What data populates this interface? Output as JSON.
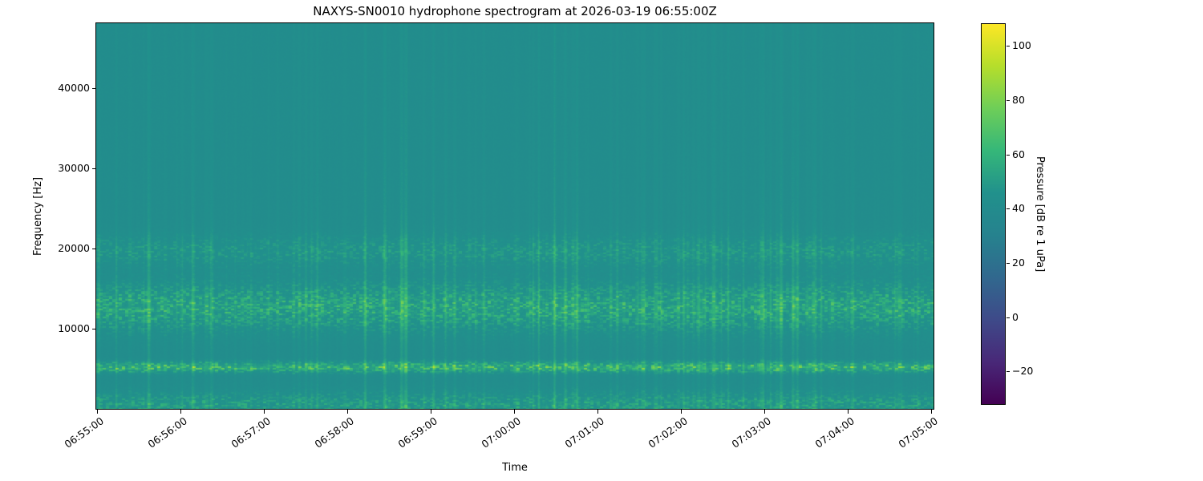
{
  "chart_data": {
    "type": "heatmap",
    "subtype": "spectrogram",
    "title": "NAXYS-SN0010 hydrophone spectrogram at 2026-03-19 06:55:00Z",
    "xlabel": "Time",
    "ylabel": "Frequency [Hz]",
    "x_ticks": [
      "06:55:00",
      "06:56:00",
      "06:57:00",
      "06:58:00",
      "06:59:00",
      "07:00:00",
      "07:01:00",
      "07:02:00",
      "07:03:00",
      "07:04:00",
      "07:05:00"
    ],
    "y_ticks": [
      10000,
      20000,
      30000,
      40000
    ],
    "y_range_hz": [
      0,
      48100
    ],
    "grid": false,
    "colorbar": {
      "label": "Pressure [dB re 1 uPa]",
      "ticks": [
        -20,
        0,
        20,
        40,
        60,
        80,
        100
      ],
      "vmin": -32,
      "vmax": 108,
      "colormap": "viridis",
      "colormap_stops": [
        "#440154",
        "#482878",
        "#3e4a89",
        "#31688e",
        "#26828e",
        "#21918c",
        "#35b779",
        "#6ece58",
        "#b5de2b",
        "#fde725"
      ],
      "position": "right"
    },
    "background_level_db": 41,
    "background_color_approx": "#1f9e89",
    "bands": [
      {
        "name": "low-frequency-surface-noise",
        "center_hz": 400,
        "half_width_hz": 1100,
        "peak_db": 56
      },
      {
        "name": "tonal-band-5khz",
        "center_hz": 5200,
        "half_width_hz": 420,
        "peak_db": 74
      },
      {
        "name": "broadband-band-12-14khz",
        "center_hz": 12700,
        "half_width_hz": 1900,
        "peak_db": 62
      },
      {
        "name": "band-19-20khz",
        "center_hz": 19700,
        "half_width_hz": 1300,
        "peak_db": 51
      }
    ],
    "transients": {
      "description": "broadband vertical streaks (impulsive clicks) across the whole record, strongest between 4 and 22 kHz",
      "max_boost_db": 16
    }
  }
}
